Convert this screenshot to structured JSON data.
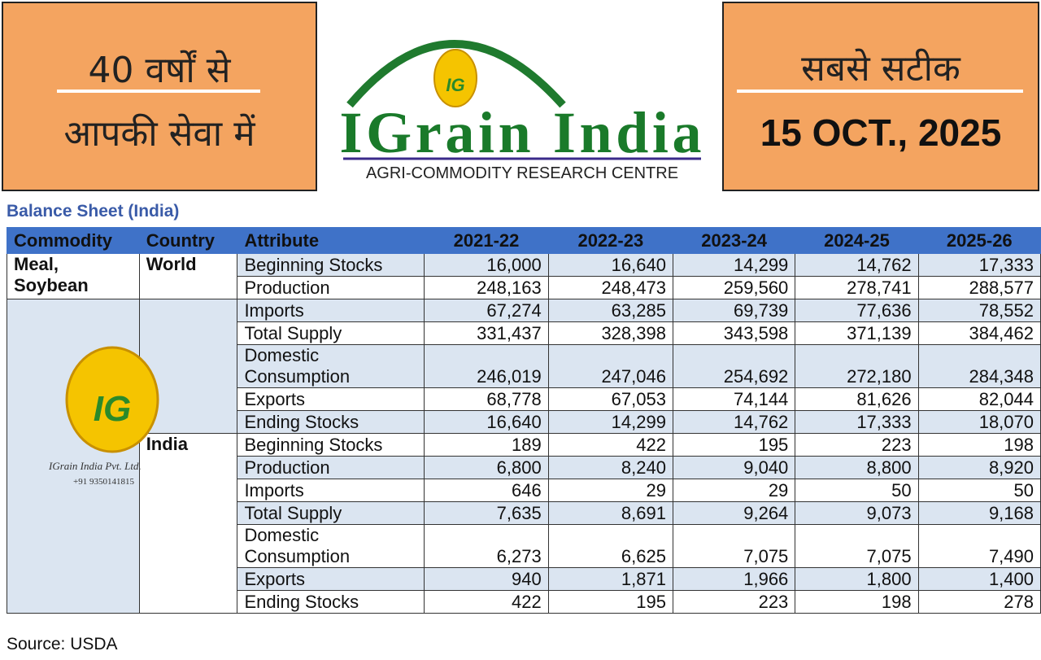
{
  "header": {
    "left_line1": "40 वर्षों से",
    "left_line2": "आपकी सेवा में",
    "logo_mark": "IG",
    "logo_title": "IGrain India",
    "logo_subtitle": "AGRI-COMMODITY RESEARCH CENTRE",
    "right_line1": "सबसे सटीक",
    "date": "15 OCT., 2025"
  },
  "table": {
    "title": "Balance Sheet (India)",
    "columns": [
      "Commodity",
      "Country",
      "Attribute",
      "2021-22",
      "2022-23",
      "2023-24",
      "2024-25",
      "2025-26"
    ],
    "commodity": "Meal, Soybean",
    "groups": [
      {
        "country": "World",
        "rows": [
          {
            "attribute": "Beginning Stocks",
            "values": [
              "16,000",
              "16,640",
              "14,299",
              "14,762",
              "17,333"
            ]
          },
          {
            "attribute": "Production",
            "values": [
              "248,163",
              "248,473",
              "259,560",
              "278,741",
              "288,577"
            ]
          },
          {
            "attribute": "Imports",
            "values": [
              "67,274",
              "63,285",
              "69,739",
              "77,636",
              "78,552"
            ]
          },
          {
            "attribute": "Total Supply",
            "values": [
              "331,437",
              "328,398",
              "343,598",
              "371,139",
              "384,462"
            ]
          },
          {
            "attribute": "Domestic Consumption",
            "values": [
              "246,019",
              "247,046",
              "254,692",
              "272,180",
              "284,348"
            ]
          },
          {
            "attribute": "Exports",
            "values": [
              "68,778",
              "67,053",
              "74,144",
              "81,626",
              "82,044"
            ]
          },
          {
            "attribute": "Ending Stocks",
            "values": [
              "16,640",
              "14,299",
              "14,762",
              "17,333",
              "18,070"
            ]
          }
        ]
      },
      {
        "country": "India",
        "rows": [
          {
            "attribute": "Beginning Stocks",
            "values": [
              "189",
              "422",
              "195",
              "223",
              "198"
            ]
          },
          {
            "attribute": "Production",
            "values": [
              "6,800",
              "8,240",
              "9,040",
              "8,800",
              "8,920"
            ]
          },
          {
            "attribute": "Imports",
            "values": [
              "646",
              "29",
              "29",
              "50",
              "50"
            ]
          },
          {
            "attribute": "Total Supply",
            "values": [
              "7,635",
              "8,691",
              "9,264",
              "9,073",
              "9,168"
            ]
          },
          {
            "attribute": "Domestic Consumption",
            "values": [
              "6,273",
              "6,625",
              "7,075",
              "7,075",
              "7,490"
            ]
          },
          {
            "attribute": "Exports",
            "values": [
              "940",
              "1,871",
              "1,966",
              "1,800",
              "1,400"
            ]
          },
          {
            "attribute": "Ending Stocks",
            "values": [
              "422",
              "195",
              "223",
              "198",
              "278"
            ]
          }
        ]
      }
    ]
  },
  "watermark": {
    "mark": "IG",
    "company": "IGrain India Pvt. Ltd.",
    "phone": "+91 9350141815"
  },
  "source": "Source: USDA"
}
